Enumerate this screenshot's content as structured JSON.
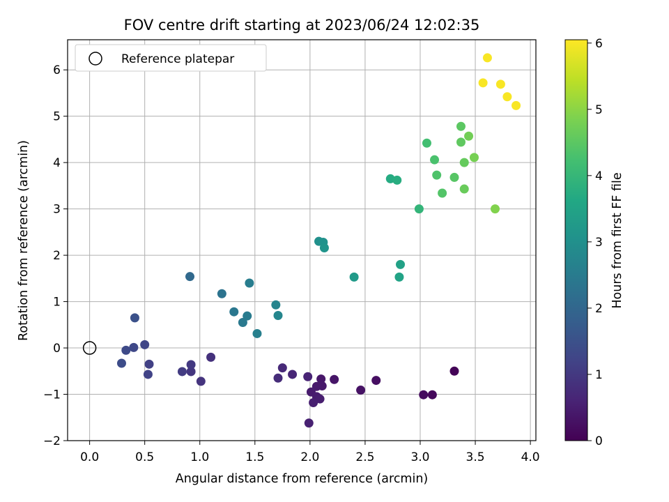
{
  "chart_data": {
    "type": "scatter",
    "title": "FOV centre drift starting at 2023/06/24 12:02:35",
    "xlabel": "Angular distance from reference (arcmin)",
    "ylabel": "Rotation from reference (arcmin)",
    "xlim": [
      -0.2,
      4.05
    ],
    "ylim": [
      -2.0,
      6.65
    ],
    "xticks": [
      "0.0",
      "0.5",
      "1.0",
      "1.5",
      "2.0",
      "2.5",
      "3.0",
      "3.5",
      "4.0"
    ],
    "yticks": [
      "−2",
      "−1",
      "0",
      "1",
      "2",
      "3",
      "4",
      "5",
      "6"
    ],
    "grid": true,
    "legend": {
      "placement": "top-left",
      "entries": [
        "Reference platepar"
      ]
    },
    "reference_point": {
      "x": 0.0,
      "y": 0.0
    },
    "colorbar": {
      "label": "Hours from first FF file",
      "range": [
        0,
        6.05
      ],
      "ticks": [
        "0",
        "1",
        "2",
        "3",
        "4",
        "5",
        "6"
      ],
      "colormap": "viridis"
    },
    "points": [
      {
        "x": 3.31,
        "y": -0.5,
        "c": 0.05
      },
      {
        "x": 3.11,
        "y": -1.01,
        "c": 0.12
      },
      {
        "x": 3.03,
        "y": -1.01,
        "c": 0.18
      },
      {
        "x": 2.6,
        "y": -0.7,
        "c": 0.25
      },
      {
        "x": 2.46,
        "y": -0.91,
        "c": 0.3
      },
      {
        "x": 2.22,
        "y": -0.68,
        "c": 0.35
      },
      {
        "x": 2.1,
        "y": -0.67,
        "c": 0.38
      },
      {
        "x": 2.11,
        "y": -0.82,
        "c": 0.4
      },
      {
        "x": 2.06,
        "y": -0.83,
        "c": 0.42
      },
      {
        "x": 2.01,
        "y": -0.95,
        "c": 0.45
      },
      {
        "x": 2.06,
        "y": -1.05,
        "c": 0.47
      },
      {
        "x": 2.09,
        "y": -1.1,
        "c": 0.5
      },
      {
        "x": 2.03,
        "y": -1.18,
        "c": 0.52
      },
      {
        "x": 1.99,
        "y": -1.62,
        "c": 0.55
      },
      {
        "x": 1.98,
        "y": -0.62,
        "c": 0.6
      },
      {
        "x": 1.84,
        "y": -0.57,
        "c": 0.65
      },
      {
        "x": 1.75,
        "y": -0.43,
        "c": 0.7
      },
      {
        "x": 1.71,
        "y": -0.65,
        "c": 0.75
      },
      {
        "x": 1.1,
        "y": -0.2,
        "c": 0.85
      },
      {
        "x": 1.01,
        "y": -0.72,
        "c": 0.9
      },
      {
        "x": 0.92,
        "y": -0.51,
        "c": 0.95
      },
      {
        "x": 0.92,
        "y": -0.36,
        "c": 1.0
      },
      {
        "x": 0.84,
        "y": -0.51,
        "c": 1.05
      },
      {
        "x": 0.54,
        "y": -0.35,
        "c": 1.15
      },
      {
        "x": 0.53,
        "y": -0.57,
        "c": 1.2
      },
      {
        "x": 0.5,
        "y": 0.07,
        "c": 1.25
      },
      {
        "x": 0.4,
        "y": 0.01,
        "c": 1.3
      },
      {
        "x": 0.33,
        "y": -0.05,
        "c": 1.35
      },
      {
        "x": 0.29,
        "y": -0.33,
        "c": 1.4
      },
      {
        "x": 0.41,
        "y": 0.65,
        "c": 1.5
      },
      {
        "x": 0.91,
        "y": 1.54,
        "c": 2.05
      },
      {
        "x": 1.2,
        "y": 1.17,
        "c": 2.3
      },
      {
        "x": 1.31,
        "y": 0.78,
        "c": 2.4
      },
      {
        "x": 1.39,
        "y": 0.55,
        "c": 2.45
      },
      {
        "x": 1.43,
        "y": 0.69,
        "c": 2.5
      },
      {
        "x": 1.45,
        "y": 1.4,
        "c": 2.55
      },
      {
        "x": 1.52,
        "y": 0.31,
        "c": 2.6
      },
      {
        "x": 1.69,
        "y": 0.93,
        "c": 2.7
      },
      {
        "x": 1.71,
        "y": 0.7,
        "c": 2.75
      },
      {
        "x": 2.08,
        "y": 2.3,
        "c": 3.0
      },
      {
        "x": 2.12,
        "y": 2.28,
        "c": 3.05
      },
      {
        "x": 2.13,
        "y": 2.16,
        "c": 3.1
      },
      {
        "x": 2.4,
        "y": 1.53,
        "c": 3.25
      },
      {
        "x": 2.82,
        "y": 1.8,
        "c": 3.45
      },
      {
        "x": 2.81,
        "y": 1.53,
        "c": 3.5
      },
      {
        "x": 2.73,
        "y": 3.65,
        "c": 3.7
      },
      {
        "x": 2.79,
        "y": 3.62,
        "c": 3.75
      },
      {
        "x": 2.99,
        "y": 3.0,
        "c": 3.95
      },
      {
        "x": 3.06,
        "y": 4.42,
        "c": 4.2
      },
      {
        "x": 3.13,
        "y": 4.06,
        "c": 4.3
      },
      {
        "x": 3.15,
        "y": 3.73,
        "c": 4.35
      },
      {
        "x": 3.2,
        "y": 3.34,
        "c": 4.4
      },
      {
        "x": 3.31,
        "y": 3.68,
        "c": 4.45
      },
      {
        "x": 3.37,
        "y": 4.78,
        "c": 4.5
      },
      {
        "x": 3.37,
        "y": 4.44,
        "c": 4.55
      },
      {
        "x": 3.4,
        "y": 4.0,
        "c": 4.6
      },
      {
        "x": 3.4,
        "y": 3.43,
        "c": 4.65
      },
      {
        "x": 3.44,
        "y": 4.57,
        "c": 4.75
      },
      {
        "x": 3.49,
        "y": 4.11,
        "c": 4.8
      },
      {
        "x": 3.68,
        "y": 3.0,
        "c": 4.9
      },
      {
        "x": 3.61,
        "y": 6.26,
        "c": 6.0
      },
      {
        "x": 3.57,
        "y": 5.72,
        "c": 6.0
      },
      {
        "x": 3.73,
        "y": 5.69,
        "c": 6.0
      },
      {
        "x": 3.79,
        "y": 5.42,
        "c": 6.0
      },
      {
        "x": 3.87,
        "y": 5.23,
        "c": 6.0
      }
    ]
  }
}
